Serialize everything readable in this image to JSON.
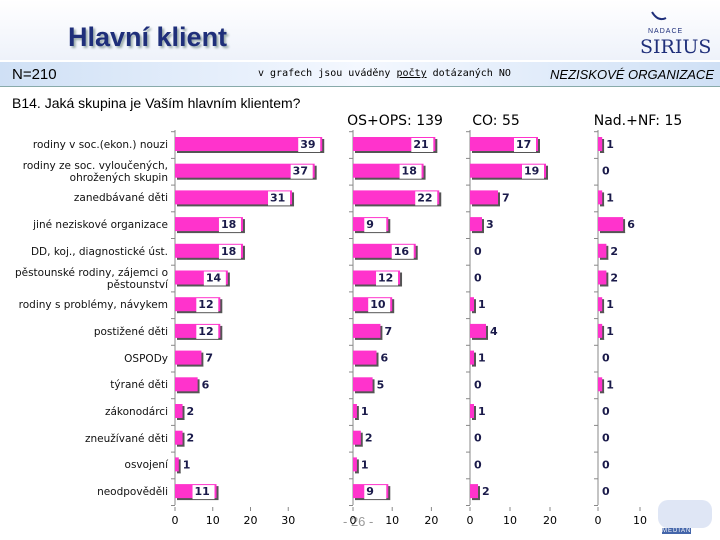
{
  "header": {
    "title": "Hlavní klient",
    "n": "N=210",
    "note": [
      "v grafech jsou uváděny ",
      "počty",
      " dotázaných NO"
    ],
    "section": "NEZISKOVÉ ORGANIZACE",
    "logo_top": [
      "NADACE",
      "SIRIUS"
    ],
    "logo_bottom": "MEDIAN"
  },
  "question": "B14. Jaká skupina je Vaším hlavním klientem?",
  "page_number": "- 26 -",
  "chart_data": [
    {
      "type": "bar",
      "orientation": "horizontal",
      "color": "#ff33cc",
      "categories": [
        "rodiny v soc.(ekon.) nouzi",
        "rodiny ze soc. vyloučených, ohrožených skupin",
        "zanedbávané děti",
        "jiné neziskové organizace",
        "DD, koj., diagnostické úst.",
        "pěstounské rodiny, zájemci o pěstounství",
        "rodiny s problémy, návykem",
        "postižené děti",
        "OSPODy",
        "týrané děti",
        "zákonodárci",
        "zneužívané děti",
        "osvojení",
        "neodpověděli"
      ],
      "values": [
        39,
        37,
        31,
        18,
        18,
        14,
        12,
        12,
        7,
        6,
        2,
        2,
        1,
        11
      ],
      "xlim": [
        0,
        40
      ],
      "xticks": [
        0,
        10,
        20,
        30
      ]
    },
    {
      "type": "bar",
      "orientation": "horizontal",
      "color": "#ff33cc",
      "title": "OS+OPS: 139",
      "values": [
        21,
        18,
        22,
        9,
        16,
        12,
        10,
        7,
        6,
        5,
        1,
        2,
        1,
        9
      ],
      "xlim": [
        0,
        25
      ],
      "xticks": [
        0,
        10,
        20
      ]
    },
    {
      "type": "bar",
      "orientation": "horizontal",
      "color": "#ff33cc",
      "title": "CO: 55",
      "values": [
        17,
        19,
        7,
        3,
        0,
        0,
        1,
        4,
        1,
        0,
        1,
        0,
        0,
        2
      ],
      "xlim": [
        0,
        20
      ],
      "xticks": [
        0,
        10,
        20
      ]
    },
    {
      "type": "bar",
      "orientation": "horizontal",
      "color": "#ff33cc",
      "title": "Nad.+NF: 15",
      "values": [
        1,
        0,
        1,
        6,
        2,
        2,
        1,
        1,
        0,
        1,
        0,
        0,
        0,
        0
      ],
      "xlim": [
        0,
        20
      ],
      "xticks": [
        0,
        10
      ]
    }
  ]
}
